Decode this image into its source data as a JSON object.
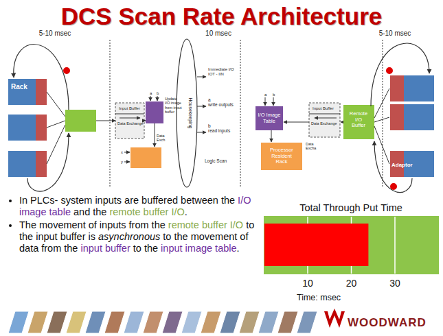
{
  "title": "DCS Scan Rate Architecture",
  "diagram": {
    "timings": [
      "5-10 msec",
      "10 msec",
      "5-10 msec"
    ],
    "left": {
      "rack": "Rack",
      "input_buffer": [
        "Input Buffer",
        "Data Exchange"
      ],
      "io_image_inputs": [
        "a",
        "b"
      ],
      "update_label": [
        "Update",
        "I/O image",
        "from input",
        "buffer"
      ],
      "data_exchange": [
        "Data",
        "Exch"
      ],
      "xy": [
        "x",
        "y"
      ]
    },
    "middle": {
      "loop": "Housekeeping",
      "immediate_io": [
        "Immediate I/O",
        "IOT - IIN"
      ],
      "write_outputs": [
        "a",
        "write outputs"
      ],
      "read_inputs": [
        "b",
        "read inputs"
      ],
      "logic_scan": "Logic Scan"
    },
    "right": {
      "io_image_table": [
        "I/O Image",
        "Table"
      ],
      "io_image_inputs": [
        "a",
        "b"
      ],
      "processor_rack": [
        "Processor",
        "Resident",
        "Rack"
      ],
      "input_buffer": [
        "Input Buffer",
        "Data Exchange"
      ],
      "data_exchange": [
        "Data",
        "Excha"
      ],
      "remote_buffer": [
        "Remote",
        "I/O",
        "Buffer"
      ],
      "adaptor": "Adaptor"
    }
  },
  "bullets": [
    [
      {
        "text": "In PLCs- system inputs are buffered between the ",
        "style": "plain"
      },
      {
        "text": "I/O image table",
        "style": "purple"
      },
      {
        "text": " and the ",
        "style": "plain"
      },
      {
        "text": "remote buffer I/O",
        "style": "green"
      },
      {
        "text": ".",
        "style": "plain"
      }
    ],
    [
      {
        "text": "The movement of inputs from the ",
        "style": "plain"
      },
      {
        "text": "remote buffer I/O",
        "style": "green"
      },
      {
        "text": " to the input buffer is ",
        "style": "plain"
      },
      {
        "text": "asynchronous",
        "style": "italic"
      },
      {
        "text": " to the movement of data from the ",
        "style": "plain"
      },
      {
        "text": "input buffer",
        "style": "purple"
      },
      {
        "text": " to the ",
        "style": "plain"
      },
      {
        "text": "input image table",
        "style": "purple"
      },
      {
        "text": ".",
        "style": "plain"
      }
    ]
  ],
  "logo": "WOODWARD",
  "chart_data": {
    "type": "bar",
    "orientation": "horizontal",
    "title": "Total Through Put Time",
    "xlabel": "Time: msec",
    "categories": [
      null
    ],
    "values": [
      24
    ],
    "color": "#ff0000",
    "xlim": [
      0,
      40
    ],
    "xticks": [
      10,
      20,
      30
    ],
    "grid": true,
    "tick_labels": "x"
  }
}
